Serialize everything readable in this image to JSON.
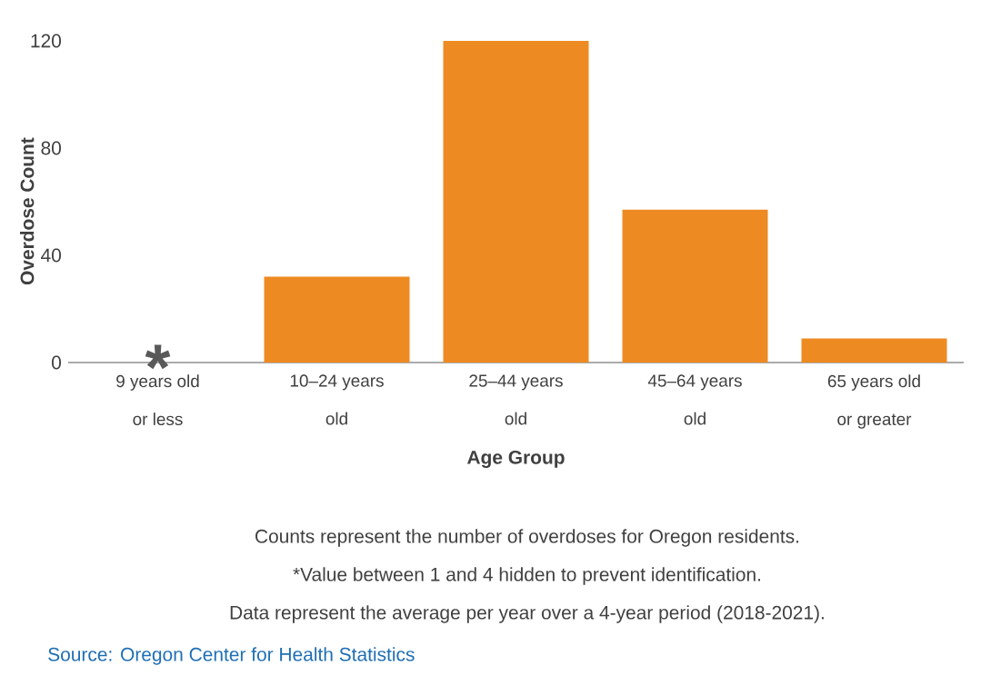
{
  "chart_data": {
    "type": "bar",
    "xlabel": "Age Group",
    "ylabel": "Overdose Count",
    "categories": [
      "9 years old or less",
      "10–24 years old",
      "25–44 years old",
      "45–64 years old",
      "65 years old or greater"
    ],
    "values": [
      null,
      32,
      120,
      57,
      9
    ],
    "color": "#ee8a22",
    "ylim": [
      0,
      120
    ],
    "yticks": [
      0,
      40,
      80,
      120
    ],
    "annotations": [
      "*",
      "Counts represent the number of overdoses for Oregon residents.",
      "*Value between 1 and 4 hidden to prevent identification.",
      "Data represent the average per year over a 4-year period (2018-2021).",
      "Source: Oregon Center for Health Statistics"
    ]
  }
}
